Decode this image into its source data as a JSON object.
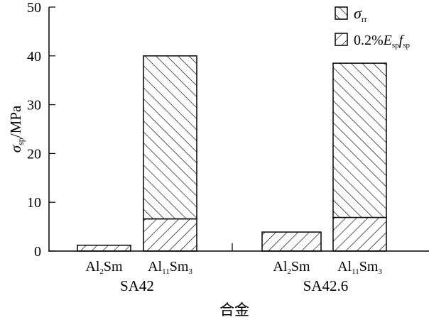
{
  "chart_data": {
    "type": "bar",
    "stacked": true,
    "ylabel": "σsp/MPa",
    "ylabel_parts": {
      "main": "σ",
      "sub": "sp",
      "unit": "/MPa"
    },
    "xlabel": "合金",
    "ylim": [
      0,
      50
    ],
    "yticks": [
      0,
      10,
      20,
      30,
      40,
      50
    ],
    "grid": false,
    "legend_placement": "top-right",
    "groups": [
      {
        "label": "SA42",
        "categories": [
          {
            "label_main": "Al",
            "label_sub1": "2",
            "label_mid": "Sm",
            "label_sub2": ""
          },
          {
            "label_main": "Al",
            "label_sub1": "11",
            "label_mid": "Sm",
            "label_sub2": "3"
          }
        ]
      },
      {
        "label": "SA42.6",
        "categories": [
          {
            "label_main": "Al",
            "label_sub1": "2",
            "label_mid": "Sm",
            "label_sub2": ""
          },
          {
            "label_main": "Al",
            "label_sub1": "11",
            "label_mid": "Sm",
            "label_sub2": "3"
          }
        ]
      }
    ],
    "categories": [
      "SA42 Al2Sm",
      "SA42 Al11Sm3",
      "SA42.6 Al2Sm",
      "SA42.6 Al11Sm3"
    ],
    "series": [
      {
        "name": "0.2%Esp fsp",
        "pattern": "forward-hatch",
        "values": [
          1.2,
          6.6,
          3.9,
          6.9
        ]
      },
      {
        "name": "σrr",
        "pattern": "back-hatch",
        "values": [
          0,
          33.4,
          0,
          31.6
        ]
      }
    ],
    "legend": [
      {
        "pattern": "back-hatch",
        "main": "σ",
        "sub": "rr"
      },
      {
        "pattern": "forward-hatch",
        "pre": "0.2%",
        "e": "E",
        "esub": "sp",
        "f": "f",
        "fsub": "sp"
      }
    ]
  }
}
